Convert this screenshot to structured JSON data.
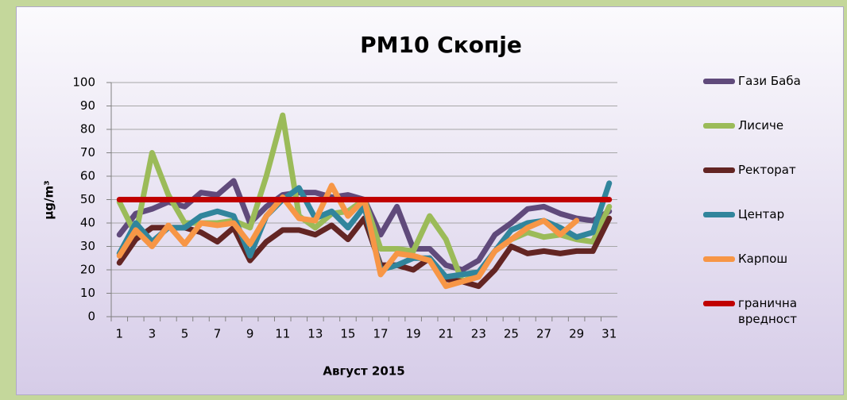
{
  "chart_data": {
    "type": "line",
    "title": "PM10 Скопје",
    "xlabel": "Август 2015",
    "ylabel": "μg/m³",
    "categories": [
      1,
      null,
      3,
      null,
      5,
      null,
      7,
      null,
      9,
      null,
      11,
      null,
      13,
      null,
      15,
      null,
      17,
      null,
      19,
      null,
      21,
      null,
      23,
      null,
      25,
      null,
      27,
      null,
      29,
      null,
      31
    ],
    "series": [
      {
        "name": "Гази Баба",
        "color": "#604a7b",
        "values": [
          35,
          44,
          46,
          49,
          47,
          53,
          52,
          58,
          40,
          47,
          52,
          53,
          53,
          51,
          52,
          50,
          35,
          47,
          29,
          29,
          22,
          20,
          24,
          35,
          40,
          46,
          47,
          44,
          42,
          41,
          45
        ]
      },
      {
        "name": "Лисиче",
        "color": "#9bbb59",
        "values": [
          49,
          35,
          70,
          52,
          40,
          40,
          40,
          41,
          38,
          60,
          86,
          43,
          38,
          44,
          45,
          50,
          29,
          29,
          28,
          43,
          33,
          15,
          18,
          28,
          33,
          36,
          34,
          35,
          33,
          32,
          47
        ]
      },
      {
        "name": "Ректорат",
        "color": "#632523",
        "values": [
          23,
          33,
          38,
          38,
          38,
          36,
          32,
          38,
          24,
          32,
          37,
          37,
          35,
          39,
          33,
          42,
          22,
          22,
          20,
          25,
          16,
          15,
          13,
          20,
          30,
          27,
          28,
          27,
          28,
          28,
          42
        ]
      },
      {
        "name": "Центар",
        "color": "#31859c",
        "values": [
          27,
          40,
          32,
          38,
          38,
          43,
          45,
          43,
          26,
          43,
          50,
          55,
          42,
          45,
          38,
          47,
          20,
          22,
          25,
          25,
          17,
          18,
          19,
          28,
          37,
          40,
          41,
          38,
          34,
          36,
          57
        ]
      },
      {
        "name": "Карпош",
        "color": "#f79646",
        "values": [
          26,
          37,
          30,
          39,
          31,
          40,
          39,
          40,
          31,
          43,
          51,
          42,
          41,
          56,
          43,
          50,
          18,
          27,
          26,
          24,
          13,
          15,
          17,
          28,
          33,
          38,
          41,
          35,
          41,
          null,
          null
        ]
      },
      {
        "name": "гранична вредност",
        "color": "#c00000",
        "values": [
          50,
          50,
          50,
          50,
          50,
          50,
          50,
          50,
          50,
          50,
          50,
          50,
          50,
          50,
          50,
          50,
          50,
          50,
          50,
          50,
          50,
          50,
          50,
          50,
          50,
          50,
          50,
          50,
          50,
          50,
          50
        ]
      }
    ],
    "ylim": [
      0,
      100
    ],
    "yticks": [
      0,
      10,
      20,
      30,
      40,
      50,
      60,
      70,
      80,
      90,
      100
    ],
    "grid": true,
    "legend": "right"
  }
}
